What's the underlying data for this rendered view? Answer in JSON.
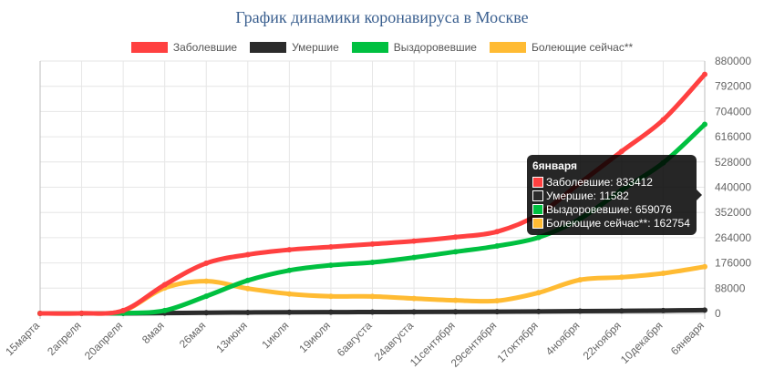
{
  "chart_data": {
    "type": "line",
    "title": "График динамики коронавируса в Москве",
    "x": [
      "15марта",
      "2апреля",
      "20апреля",
      "8мая",
      "26мая",
      "13июня",
      "1июля",
      "19июля",
      "6августа",
      "24августа",
      "11сентября",
      "29сентября",
      "17октября",
      "4ноября",
      "22ноября",
      "10декабря",
      "6января"
    ],
    "series": [
      {
        "name": "Заболевшие",
        "color": "#ff4040",
        "values": [
          0,
          300,
          10000,
          100000,
          175000,
          205000,
          222000,
          232000,
          242000,
          252000,
          266000,
          285000,
          345000,
          455000,
          565000,
          675000,
          833412
        ]
      },
      {
        "name": "Умершие",
        "color": "#2b2b2b",
        "values": [
          0,
          5,
          100,
          1200,
          2500,
          3300,
          4000,
          4400,
          4700,
          5000,
          5400,
          6000,
          6800,
          7800,
          8900,
          10100,
          11582
        ]
      },
      {
        "name": "Выздоровевшие",
        "color": "#00c040",
        "values": [
          0,
          50,
          900,
          10000,
          60000,
          115000,
          150000,
          168000,
          178000,
          195000,
          215000,
          235000,
          265000,
          330000,
          430000,
          525000,
          659076
        ]
      },
      {
        "name": "Болеющие сейчас**",
        "color": "#ffbb33",
        "values": [
          0,
          250,
          9000,
          88800,
          112500,
          86700,
          68000,
          59600,
          59300,
          52000,
          45600,
          44000,
          72200,
          117200,
          126100,
          139900,
          162754
        ]
      }
    ],
    "ylim": [
      0,
      880000
    ],
    "yticks": [
      "0",
      "88000",
      "176000",
      "264000",
      "352000",
      "440000",
      "528000",
      "616000",
      "704000",
      "792000",
      "880000"
    ],
    "grid": true,
    "legend_position": "top"
  },
  "tooltip": {
    "title": "6января",
    "rows": [
      {
        "label": "Заболевшие: 833412",
        "color": "#ff4040"
      },
      {
        "label": "Умершие: 11582",
        "color": "#2b2b2b"
      },
      {
        "label": "Выздоровевшие: 659076",
        "color": "#00c040"
      },
      {
        "label": "Болеющие сейчас**: 162754",
        "color": "#ffbb33"
      }
    ]
  }
}
